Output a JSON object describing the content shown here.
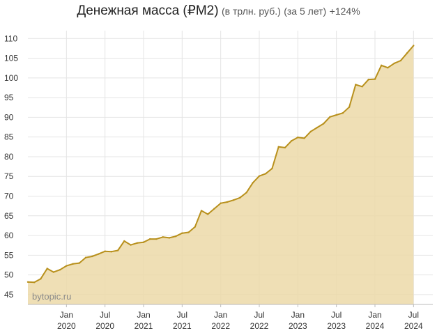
{
  "header": {
    "title": "Денежная масса (₽M2)",
    "unit_note": "(в трлн. руб.)",
    "period_note": "(за 5 лет)",
    "change": "+124%"
  },
  "watermark": "bytopic.ru",
  "colors": {
    "line": "#b8901c",
    "fill": "#ecd9a8",
    "grid": "#e4e4e4",
    "axis_text": "#333333",
    "watermark": "#8a8a8a"
  },
  "chart_data": {
    "type": "area",
    "x_tick_labels": [
      {
        "month": "Jan",
        "year": "2020",
        "x": "2020-01"
      },
      {
        "month": "Jul",
        "year": "2020",
        "x": "2020-07"
      },
      {
        "month": "Jan",
        "year": "2021",
        "x": "2021-01"
      },
      {
        "month": "Jul",
        "year": "2021",
        "x": "2021-07"
      },
      {
        "month": "Jan",
        "year": "2022",
        "x": "2022-01"
      },
      {
        "month": "Jul",
        "year": "2022",
        "x": "2022-07"
      },
      {
        "month": "Jan",
        "year": "2023",
        "x": "2023-01"
      },
      {
        "month": "Jul",
        "year": "2023",
        "x": "2023-07"
      },
      {
        "month": "Jan",
        "year": "2024",
        "x": "2024-01"
      },
      {
        "month": "Jul",
        "year": "2024",
        "x": "2024-07"
      }
    ],
    "y_ticks": [
      45,
      50,
      55,
      60,
      65,
      70,
      75,
      80,
      85,
      90,
      95,
      100,
      105,
      110
    ],
    "xlim": [
      "2019-07",
      "2024-10"
    ],
    "ylim": [
      42.5,
      112
    ],
    "grid": true,
    "series": [
      {
        "points": [
          [
            "2019-07",
            48.2
          ],
          [
            "2019-08",
            48.1
          ],
          [
            "2019-09",
            49.0
          ],
          [
            "2019-10",
            51.6
          ],
          [
            "2019-11",
            50.7
          ],
          [
            "2019-12",
            51.3
          ],
          [
            "2020-01",
            52.3
          ],
          [
            "2020-02",
            52.8
          ],
          [
            "2020-03",
            53.0
          ],
          [
            "2020-04",
            54.4
          ],
          [
            "2020-05",
            54.7
          ],
          [
            "2020-06",
            55.3
          ],
          [
            "2020-07",
            56.0
          ],
          [
            "2020-08",
            55.9
          ],
          [
            "2020-09",
            56.2
          ],
          [
            "2020-10",
            58.6
          ],
          [
            "2020-11",
            57.6
          ],
          [
            "2020-12",
            58.1
          ],
          [
            "2021-01",
            58.3
          ],
          [
            "2021-02",
            59.1
          ],
          [
            "2021-03",
            59.1
          ],
          [
            "2021-04",
            59.6
          ],
          [
            "2021-05",
            59.4
          ],
          [
            "2021-06",
            59.8
          ],
          [
            "2021-07",
            60.6
          ],
          [
            "2021-08",
            60.8
          ],
          [
            "2021-09",
            62.2
          ],
          [
            "2021-10",
            66.3
          ],
          [
            "2021-11",
            65.4
          ],
          [
            "2021-12",
            66.8
          ],
          [
            "2022-01",
            68.2
          ],
          [
            "2022-02",
            68.5
          ],
          [
            "2022-03",
            69.0
          ],
          [
            "2022-04",
            69.6
          ],
          [
            "2022-05",
            70.9
          ],
          [
            "2022-06",
            73.4
          ],
          [
            "2022-07",
            75.1
          ],
          [
            "2022-08",
            75.7
          ],
          [
            "2022-09",
            77.0
          ],
          [
            "2022-10",
            82.5
          ],
          [
            "2022-11",
            82.3
          ],
          [
            "2022-12",
            84.0
          ],
          [
            "2023-01",
            84.9
          ],
          [
            "2023-02",
            84.7
          ],
          [
            "2023-03",
            86.4
          ],
          [
            "2023-04",
            87.4
          ],
          [
            "2023-05",
            88.4
          ],
          [
            "2023-06",
            90.1
          ],
          [
            "2023-07",
            90.6
          ],
          [
            "2023-08",
            91.1
          ],
          [
            "2023-09",
            92.6
          ],
          [
            "2023-10",
            98.3
          ],
          [
            "2023-11",
            97.8
          ],
          [
            "2023-12",
            99.6
          ],
          [
            "2024-01",
            99.7
          ],
          [
            "2024-02",
            103.2
          ],
          [
            "2024-03",
            102.6
          ],
          [
            "2024-04",
            103.7
          ],
          [
            "2024-05",
            104.4
          ],
          [
            "2024-06",
            106.3
          ],
          [
            "2024-07",
            108.2
          ]
        ]
      }
    ]
  }
}
